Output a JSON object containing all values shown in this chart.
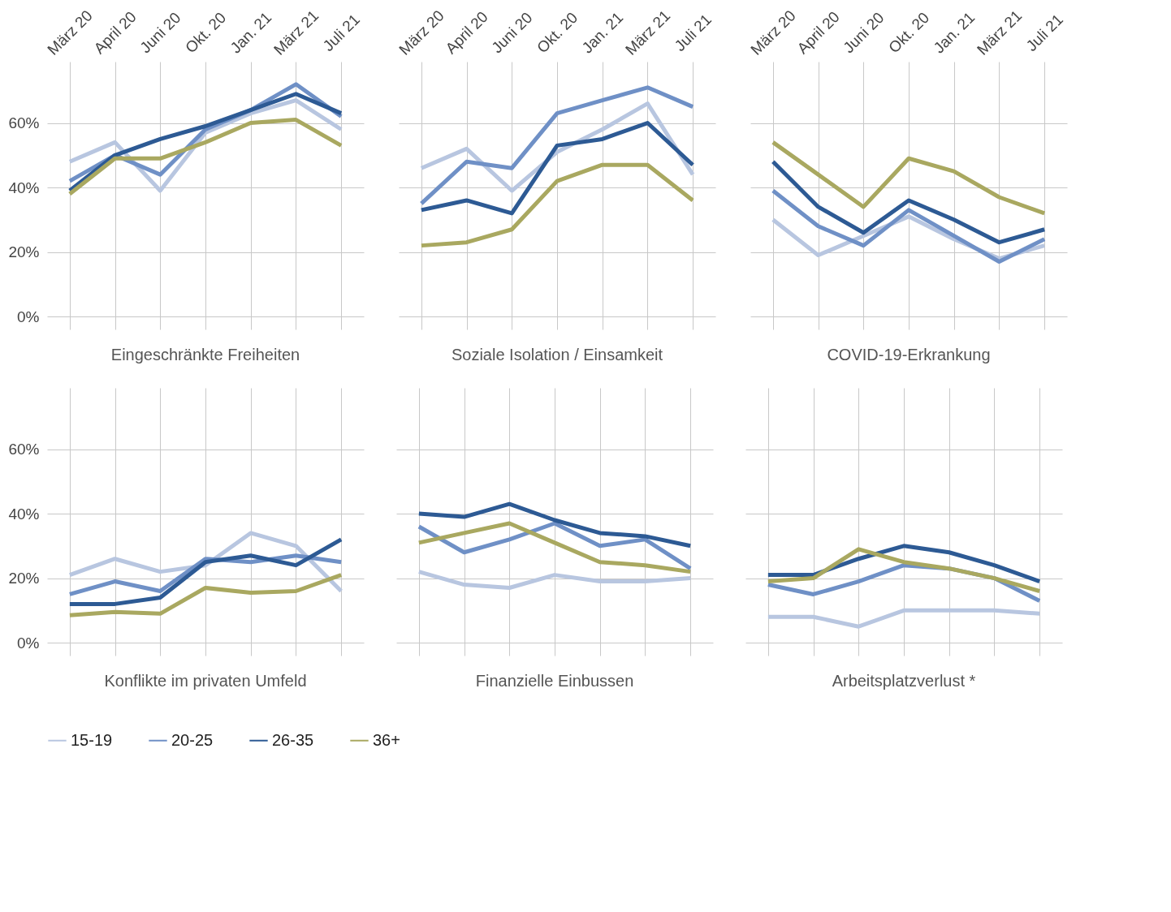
{
  "chart_data": [
    {
      "type": "line",
      "title": "Eingeschränkte Freiheiten",
      "categories": [
        "März 20",
        "April 20",
        "Juni 20",
        "Okt. 20",
        "Jan. 21",
        "März 21",
        "Juli 21"
      ],
      "ylim": [
        -4,
        79
      ],
      "yticks": [
        {
          "value": 0,
          "label": "0%"
        },
        {
          "value": 20,
          "label": "20%"
        },
        {
          "value": 40,
          "label": "40%"
        },
        {
          "value": 60,
          "label": "60%"
        }
      ],
      "grid": true,
      "legend": "bottom",
      "series": [
        {
          "name": "15-19",
          "color": "#b8c6e0",
          "values": [
            48,
            54,
            39,
            57,
            63,
            67,
            58
          ]
        },
        {
          "name": "20-25",
          "color": "#6f90c6",
          "values": [
            42,
            50,
            44,
            58,
            64,
            72,
            62
          ]
        },
        {
          "name": "26-35",
          "color": "#2d5a94",
          "values": [
            39,
            50,
            55,
            59,
            64,
            69,
            63
          ]
        },
        {
          "name": "36+",
          "color": "#a9a860",
          "values": [
            38,
            49,
            49,
            54,
            60,
            61,
            53
          ]
        }
      ]
    },
    {
      "type": "line",
      "title": "Soziale Isolation / Einsamkeit",
      "categories": [
        "März 20",
        "April 20",
        "Juni 20",
        "Okt. 20",
        "Jan. 21",
        "März 21",
        "Juli 21"
      ],
      "ylim": [
        -4,
        79
      ],
      "yticks": [
        {
          "value": 0,
          "label": "0%"
        },
        {
          "value": 20,
          "label": "20%"
        },
        {
          "value": 40,
          "label": "40%"
        },
        {
          "value": 60,
          "label": "60%"
        }
      ],
      "grid": true,
      "tick_labels": "x",
      "series": [
        {
          "name": "15-19",
          "color": "#b8c6e0",
          "values": [
            46,
            52,
            39,
            51,
            58,
            66,
            44
          ]
        },
        {
          "name": "20-25",
          "color": "#6f90c6",
          "values": [
            35,
            48,
            46,
            63,
            67,
            71,
            65
          ]
        },
        {
          "name": "26-35",
          "color": "#2d5a94",
          "values": [
            33,
            36,
            32,
            53,
            55,
            60,
            47
          ]
        },
        {
          "name": "36+",
          "color": "#a9a860",
          "values": [
            22,
            23,
            27,
            42,
            47,
            47,
            36
          ]
        }
      ]
    },
    {
      "type": "line",
      "title": "COVID-19-Erkrankung",
      "categories": [
        "März 20",
        "April 20",
        "Juni 20",
        "Okt. 20",
        "Jan. 21",
        "März 21",
        "Juli 21"
      ],
      "ylim": [
        -4,
        79
      ],
      "yticks": [
        {
          "value": 0,
          "label": "0%"
        },
        {
          "value": 20,
          "label": "20%"
        },
        {
          "value": 40,
          "label": "40%"
        },
        {
          "value": 60,
          "label": "60%"
        }
      ],
      "grid": true,
      "tick_labels": "x",
      "series": [
        {
          "name": "15-19",
          "color": "#b8c6e0",
          "values": [
            30,
            19,
            25,
            31,
            24,
            18,
            22
          ]
        },
        {
          "name": "20-25",
          "color": "#6f90c6",
          "values": [
            39,
            28,
            22,
            33,
            25,
            17,
            24
          ]
        },
        {
          "name": "26-35",
          "color": "#2d5a94",
          "values": [
            48,
            34,
            26,
            36,
            30,
            23,
            27
          ]
        },
        {
          "name": "36+",
          "color": "#a9a860",
          "values": [
            54,
            44,
            34,
            49,
            45,
            37,
            32
          ]
        }
      ]
    },
    {
      "type": "line",
      "title": "Konflikte im privaten Umfeld",
      "categories": [
        "März 20",
        "April 20",
        "Juni 20",
        "Okt. 20",
        "Jan. 21",
        "März 21",
        "Juli 21"
      ],
      "ylim": [
        -4,
        79
      ],
      "yticks": [
        {
          "value": 0,
          "label": "0%"
        },
        {
          "value": 20,
          "label": "20%"
        },
        {
          "value": 40,
          "label": "40%"
        },
        {
          "value": 60,
          "label": "60%"
        }
      ],
      "grid": true,
      "tick_labels": "y",
      "series": [
        {
          "name": "15-19",
          "color": "#b8c6e0",
          "values": [
            21,
            26,
            22,
            24,
            34,
            30,
            16
          ]
        },
        {
          "name": "20-25",
          "color": "#6f90c6",
          "values": [
            15,
            19,
            16,
            26,
            25,
            27,
            25
          ]
        },
        {
          "name": "26-35",
          "color": "#2d5a94",
          "values": [
            12,
            12,
            14,
            25,
            27,
            24,
            32
          ]
        },
        {
          "name": "36+",
          "color": "#a9a860",
          "values": [
            8.5,
            9.5,
            9,
            17,
            15.5,
            16,
            21
          ]
        }
      ]
    },
    {
      "type": "line",
      "title": "Finanzielle Einbussen",
      "categories": [
        "März 20",
        "April 20",
        "Juni 20",
        "Okt. 20",
        "Jan. 21",
        "März 21",
        "Juli 21"
      ],
      "ylim": [
        -4,
        79
      ],
      "yticks": [
        {
          "value": 0,
          "label": "0%"
        },
        {
          "value": 20,
          "label": "20%"
        },
        {
          "value": 40,
          "label": "40%"
        },
        {
          "value": 60,
          "label": "60%"
        }
      ],
      "grid": true,
      "tick_labels": false,
      "series": [
        {
          "name": "15-19",
          "color": "#b8c6e0",
          "values": [
            22,
            18,
            17,
            21,
            19,
            19,
            20
          ]
        },
        {
          "name": "20-25",
          "color": "#6f90c6",
          "values": [
            36,
            28,
            32,
            37,
            30,
            32,
            23
          ]
        },
        {
          "name": "26-35",
          "color": "#2d5a94",
          "values": [
            40,
            39,
            43,
            38,
            34,
            33,
            30
          ]
        },
        {
          "name": "36+",
          "color": "#a9a860",
          "values": [
            31,
            34,
            37,
            31,
            25,
            24,
            22
          ]
        }
      ]
    },
    {
      "type": "line",
      "title": "Arbeitsplatzverlust *",
      "categories": [
        "März 20",
        "April 20",
        "Juni 20",
        "Okt. 20",
        "Jan. 21",
        "März 21",
        "Juli 21"
      ],
      "ylim": [
        -4,
        79
      ],
      "yticks": [
        {
          "value": 0,
          "label": "0%"
        },
        {
          "value": 20,
          "label": "20%"
        },
        {
          "value": 40,
          "label": "40%"
        },
        {
          "value": 60,
          "label": "60%"
        }
      ],
      "grid": true,
      "tick_labels": false,
      "series": [
        {
          "name": "15-19",
          "color": "#b8c6e0",
          "values": [
            8,
            8,
            5,
            10,
            10,
            10,
            9
          ]
        },
        {
          "name": "20-25",
          "color": "#6f90c6",
          "values": [
            18,
            15,
            19,
            24,
            23,
            20,
            13
          ]
        },
        {
          "name": "26-35",
          "color": "#2d5a94",
          "values": [
            21,
            21,
            26,
            30,
            28,
            24,
            19
          ]
        },
        {
          "name": "36+",
          "color": "#a9a860",
          "values": [
            19,
            20,
            29,
            25,
            23,
            20,
            16
          ]
        }
      ]
    }
  ]
}
